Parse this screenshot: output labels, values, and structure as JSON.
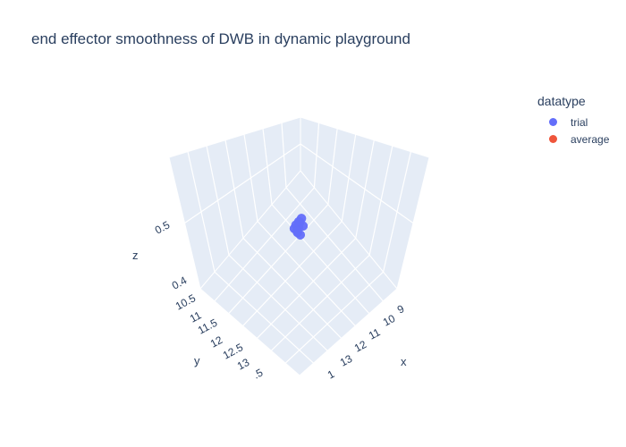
{
  "title": "end effector smoothness of DWB in dynamic playground",
  "legend": {
    "title": "datatype",
    "items": [
      {
        "label": "trial",
        "color": "#636efa"
      },
      {
        "label": "average",
        "color": "#ef553b"
      }
    ]
  },
  "chart_data": {
    "type": "scatter3d",
    "title": "end effector smoothness of DWB in dynamic playground",
    "axes": {
      "x": {
        "label": "x",
        "ticks": [
          "9",
          "10",
          "11",
          "12",
          "13",
          "1"
        ]
      },
      "y": {
        "label": "y",
        "ticks": [
          "10.5",
          "11",
          "11.5",
          "12",
          "12.5",
          "13",
          ".5"
        ]
      },
      "z": {
        "label": "z",
        "ticks": [
          "0.4",
          "0.5"
        ]
      }
    },
    "series": [
      {
        "name": "trial",
        "color": "#636efa",
        "points": [
          {
            "x": 11.5,
            "y": 12.0,
            "z": 0.47
          },
          {
            "x": 11.6,
            "y": 12.1,
            "z": 0.47
          },
          {
            "x": 11.4,
            "y": 11.9,
            "z": 0.47
          },
          {
            "x": 11.5,
            "y": 11.9,
            "z": 0.48
          },
          {
            "x": 11.6,
            "y": 12.0,
            "z": 0.46
          },
          {
            "x": 11.4,
            "y": 12.1,
            "z": 0.47
          },
          {
            "x": 11.5,
            "y": 12.1,
            "z": 0.48
          },
          {
            "x": 11.6,
            "y": 11.9,
            "z": 0.47
          },
          {
            "x": 11.4,
            "y": 12.0,
            "z": 0.46
          },
          {
            "x": 11.5,
            "y": 12.0,
            "z": 0.48
          }
        ]
      },
      {
        "name": "average",
        "color": "#ef553b",
        "points": []
      }
    ],
    "grid": true,
    "legend_position": "top-right"
  }
}
